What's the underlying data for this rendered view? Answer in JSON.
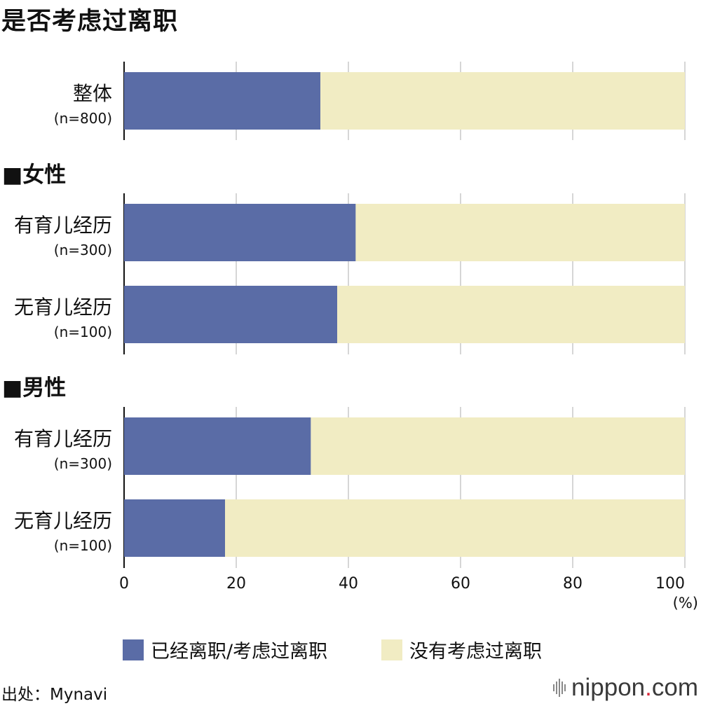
{
  "title": "是否考虑过离职",
  "chart_data": {
    "type": "bar",
    "orientation": "horizontal",
    "stacked": true,
    "xlim": [
      0,
      100
    ],
    "x_ticks": [
      "0",
      "20",
      "40",
      "60",
      "80",
      "100"
    ],
    "x_unit": "(%)",
    "grid": true,
    "groups": [
      {
        "header": "",
        "rows": [
          {
            "label": "整体",
            "n": "(n=800)"
          }
        ]
      },
      {
        "header": "■女性",
        "rows": [
          {
            "label": "有育儿经历",
            "n": "(n=300)"
          },
          {
            "label": "无育儿经历",
            "n": "(n=100)"
          }
        ]
      },
      {
        "header": "■男性",
        "rows": [
          {
            "label": "有育儿经历",
            "n": "(n=300)"
          },
          {
            "label": "无育儿经历",
            "n": "(n=100)"
          }
        ]
      }
    ],
    "series": [
      {
        "name": "已经离职/考虑过离职",
        "color": "#5a6ca6",
        "values": [
          35.0,
          41.3,
          38.0,
          33.3,
          18.0
        ]
      },
      {
        "name": "没有考虑过离职",
        "color": "#f1ecc3",
        "values": [
          65.0,
          58.7,
          62.0,
          66.7,
          82.0
        ]
      }
    ]
  },
  "source": "出处：Mynavi",
  "logo": {
    "main": "nippon",
    "dot": ".",
    "tail": "com"
  }
}
